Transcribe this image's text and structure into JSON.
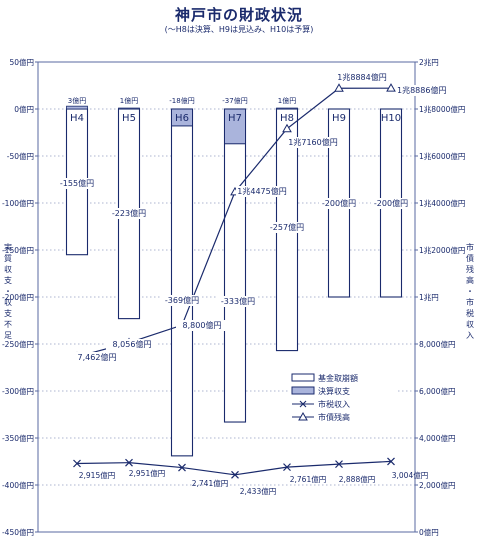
{
  "header": {
    "title": "神戸市の財政状況",
    "subtitle": "(〜H8は決算、H9は見込み、H10は予算)"
  },
  "colors": {
    "ink": "#1a2a6c",
    "grid": "#5a6aa0",
    "bar_shade": "#aab4dc"
  },
  "chart_data": {
    "type": "bar",
    "categories": [
      "H4",
      "H5",
      "H6",
      "H7",
      "H8",
      "H9",
      "H10"
    ],
    "left_axis": {
      "label": "実質収支・収支不足",
      "ylim": [
        -450,
        50
      ],
      "ticks": [
        50,
        0,
        -50,
        -100,
        -150,
        -200,
        -250,
        -300,
        -350,
        -400,
        -450
      ],
      "tick_labels": [
        "50億円",
        "0億円",
        "-50億円",
        "-100億円",
        "-150億円",
        "-200億円",
        "-250億円",
        "-300億円",
        "-350億円",
        "-400億円",
        "-450億円"
      ]
    },
    "right_axis": {
      "label": "市債残高・市税収入",
      "ylim": [
        0,
        20000
      ],
      "ticks": [
        0,
        2000,
        4000,
        6000,
        8000,
        10000,
        12000,
        14000,
        16000,
        18000,
        20000
      ],
      "tick_labels": [
        "0億円",
        "2,000億円",
        "4,000億円",
        "6,000億円",
        "8,000億円",
        "1兆円",
        "1兆2000億円",
        "1兆4000億円",
        "1兆6000億円",
        "1兆8000億円",
        "2兆円"
      ]
    },
    "series": [
      {
        "name": "基金取崩額",
        "kind": "bar",
        "axis": "left",
        "values": [
          -155,
          -223,
          -369,
          -333,
          -257,
          -200,
          -200
        ],
        "labels": [
          "-155億円",
          "-223億円",
          "-369億円",
          "-333億円",
          "-257億円",
          "-200億円",
          "-200億円"
        ]
      },
      {
        "name": "決算収支",
        "kind": "bar",
        "axis": "left",
        "values": [
          3,
          1,
          -18,
          -37,
          1,
          null,
          null
        ],
        "labels": [
          "3億円",
          "1億円",
          "-18億円",
          "-37億円",
          "1億円",
          "",
          ""
        ]
      },
      {
        "name": "市税収入",
        "kind": "line",
        "marker": "x",
        "axis": "right",
        "values": [
          2915,
          2951,
          2741,
          2433,
          2761,
          2888,
          3004
        ],
        "labels": [
          "2,915億円",
          "2,951億円",
          "2,741億円",
          "2,433億円",
          "2,761億円",
          "2,888億円",
          "3,004億円"
        ]
      },
      {
        "name": "市債残高",
        "kind": "line",
        "marker": "triangle",
        "axis": "right",
        "values": [
          7462,
          8056,
          8800,
          14475,
          17160,
          18884,
          18886
        ],
        "labels": [
          "7,462億円",
          "8,056億円",
          "8,800億円",
          "1兆4475億円",
          "1兆7160億円",
          "1兆8884億円",
          "1兆8886億円"
        ]
      }
    ],
    "legend": {
      "placement": "bottom-right",
      "entries": [
        "基金取崩額",
        "決算収支",
        "市税収入",
        "市債残高"
      ]
    }
  }
}
